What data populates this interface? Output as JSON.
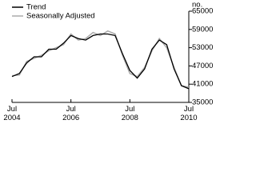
{
  "chart_data": {
    "type": "line",
    "y_label": "no.",
    "categories": [
      "Jul 2004",
      null,
      null,
      null,
      null,
      null,
      null,
      null,
      "Jul 2006",
      null,
      null,
      null,
      null,
      null,
      null,
      null,
      "Jul 2008",
      null,
      null,
      null,
      null,
      null,
      null,
      null,
      "Jul 2010"
    ],
    "series": [
      {
        "name": "Trend",
        "color": "#000000",
        "values": [
          43500,
          44500,
          48000,
          50000,
          50000,
          52500,
          52500,
          54500,
          57000,
          56000,
          55500,
          57000,
          57500,
          57500,
          57000,
          51000,
          45500,
          43000,
          46000,
          52500,
          55500,
          54000,
          46000,
          40500,
          39500
        ]
      },
      {
        "name": "Seasonally Adjusted",
        "color": "#aaaaaa",
        "values": [
          43800,
          44000,
          48500,
          49500,
          50500,
          52000,
          53000,
          54000,
          57500,
          55500,
          56000,
          58000,
          57000,
          58500,
          57500,
          50500,
          44500,
          43500,
          46500,
          52000,
          56000,
          53000,
          46500,
          40500,
          40000
        ]
      }
    ],
    "ylim": [
      35000,
      65000
    ],
    "yticks": [
      35000,
      41000,
      47000,
      53000,
      59000,
      65000
    ]
  }
}
